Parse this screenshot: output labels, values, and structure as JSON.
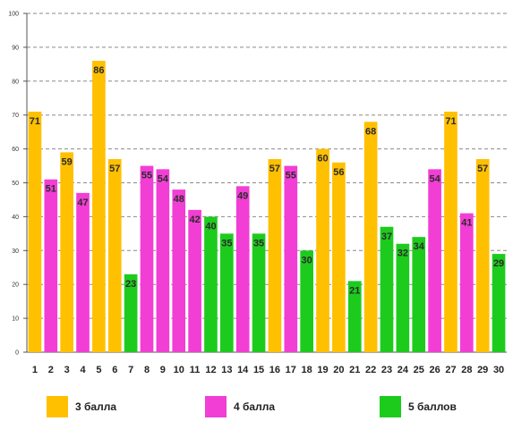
{
  "chart_data": {
    "type": "bar",
    "title": "",
    "xlabel": "",
    "ylabel": "",
    "ylim": [
      0,
      100
    ],
    "yticks": [
      0,
      10,
      20,
      30,
      40,
      50,
      60,
      70,
      80,
      90,
      100
    ],
    "grid": true,
    "categories": [
      "1",
      "2",
      "3",
      "4",
      "5",
      "6",
      "7",
      "8",
      "9",
      "10",
      "11",
      "12",
      "13",
      "14",
      "15",
      "16",
      "17",
      "18",
      "19",
      "20",
      "21",
      "22",
      "23",
      "24",
      "25",
      "26",
      "27",
      "28",
      "29",
      "30"
    ],
    "values": [
      71,
      51,
      59,
      47,
      86,
      57,
      23,
      55,
      54,
      48,
      42,
      40,
      35,
      49,
      35,
      57,
      55,
      30,
      60,
      56,
      21,
      68,
      37,
      32,
      34,
      54,
      71,
      41,
      57,
      29
    ],
    "groups": [
      "3",
      "4",
      "3",
      "4",
      "3",
      "3",
      "5",
      "4",
      "4",
      "4",
      "4",
      "5",
      "5",
      "4",
      "5",
      "3",
      "4",
      "5",
      "3",
      "3",
      "5",
      "3",
      "5",
      "5",
      "5",
      "4",
      "3",
      "4",
      "3",
      "5"
    ],
    "legend": [
      {
        "key": "3",
        "label": "3 балла",
        "color": "#FFC000"
      },
      {
        "key": "4",
        "label": "4 балла",
        "color": "#F23ED4"
      },
      {
        "key": "5",
        "label": "5 баллов",
        "color": "#1DCB1D"
      }
    ],
    "legend_placement": "bottom"
  }
}
